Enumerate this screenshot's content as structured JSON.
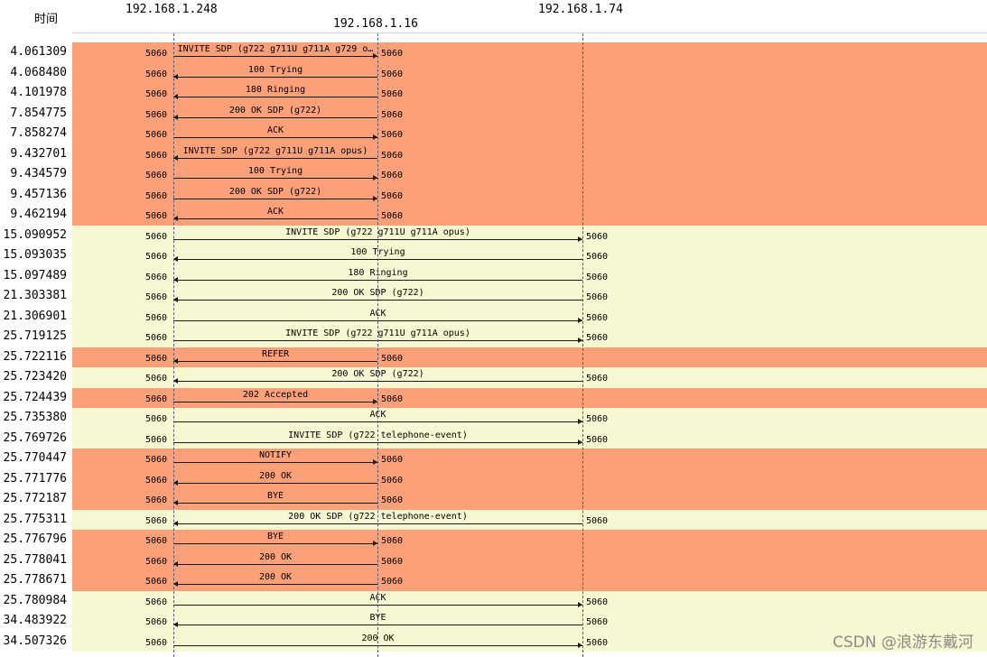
{
  "header": {
    "time_label": "时间",
    "hosts": [
      "192.168.1.248",
      "192.168.1.16",
      "192.168.1.74"
    ]
  },
  "colors": {
    "orange": "#fca07a",
    "yellow": "#f7f7d2"
  },
  "rows": [
    {
      "time": "4.061309",
      "color": "orange",
      "from": 0,
      "to": 1,
      "label": "INVITE SDP (g722 g711U g711A g729 o…",
      "p1": "5060",
      "p2": "5060"
    },
    {
      "time": "4.068480",
      "color": "orange",
      "from": 1,
      "to": 0,
      "label": "100 Trying",
      "p1": "5060",
      "p2": "5060"
    },
    {
      "time": "4.101978",
      "color": "orange",
      "from": 1,
      "to": 0,
      "label": "180 Ringing",
      "p1": "5060",
      "p2": "5060"
    },
    {
      "time": "7.854775",
      "color": "orange",
      "from": 1,
      "to": 0,
      "label": "200 OK SDP (g722)",
      "p1": "5060",
      "p2": "5060"
    },
    {
      "time": "7.858274",
      "color": "orange",
      "from": 0,
      "to": 1,
      "label": "ACK",
      "p1": "5060",
      "p2": "5060"
    },
    {
      "time": "9.432701",
      "color": "orange",
      "from": 1,
      "to": 0,
      "label": "INVITE SDP (g722 g711U g711A opus)",
      "p1": "5060",
      "p2": "5060"
    },
    {
      "time": "9.434579",
      "color": "orange",
      "from": 0,
      "to": 1,
      "label": "100 Trying",
      "p1": "5060",
      "p2": "5060"
    },
    {
      "time": "9.457136",
      "color": "orange",
      "from": 0,
      "to": 1,
      "label": "200 OK SDP (g722)",
      "p1": "5060",
      "p2": "5060"
    },
    {
      "time": "9.462194",
      "color": "orange",
      "from": 1,
      "to": 0,
      "label": "ACK",
      "p1": "5060",
      "p2": "5060"
    },
    {
      "time": "15.090952",
      "color": "yellow",
      "from": 0,
      "to": 2,
      "label": "INVITE SDP (g722 g711U g711A opus)",
      "p1": "5060",
      "p2": "5060"
    },
    {
      "time": "15.093035",
      "color": "yellow",
      "from": 2,
      "to": 0,
      "label": "100 Trying",
      "p1": "5060",
      "p2": "5060"
    },
    {
      "time": "15.097489",
      "color": "yellow",
      "from": 2,
      "to": 0,
      "label": "180 Ringing",
      "p1": "5060",
      "p2": "5060"
    },
    {
      "time": "21.303381",
      "color": "yellow",
      "from": 2,
      "to": 0,
      "label": "200 OK SDP (g722)",
      "p1": "5060",
      "p2": "5060"
    },
    {
      "time": "21.306901",
      "color": "yellow",
      "from": 0,
      "to": 2,
      "label": "ACK",
      "p1": "5060",
      "p2": "5060"
    },
    {
      "time": "25.719125",
      "color": "yellow",
      "from": 0,
      "to": 2,
      "label": "INVITE SDP (g722 g711U g711A opus)",
      "p1": "5060",
      "p2": "5060"
    },
    {
      "time": "25.722116",
      "color": "orange",
      "from": 1,
      "to": 0,
      "label": "REFER",
      "p1": "5060",
      "p2": "5060"
    },
    {
      "time": "25.723420",
      "color": "yellow",
      "from": 2,
      "to": 0,
      "label": "200 OK SDP (g722)",
      "p1": "5060",
      "p2": "5060"
    },
    {
      "time": "25.724439",
      "color": "orange",
      "from": 0,
      "to": 1,
      "label": "202 Accepted",
      "p1": "5060",
      "p2": "5060"
    },
    {
      "time": "25.735380",
      "color": "yellow",
      "from": 0,
      "to": 2,
      "label": "ACK",
      "p1": "5060",
      "p2": "5060"
    },
    {
      "time": "25.769726",
      "color": "yellow",
      "from": 0,
      "to": 2,
      "label": "INVITE SDP (g722 telephone-event)",
      "p1": "5060",
      "p2": "5060"
    },
    {
      "time": "25.770447",
      "color": "orange",
      "from": 0,
      "to": 1,
      "label": "NOTIFY",
      "p1": "5060",
      "p2": "5060"
    },
    {
      "time": "25.771776",
      "color": "orange",
      "from": 1,
      "to": 0,
      "label": "200 OK",
      "p1": "5060",
      "p2": "5060"
    },
    {
      "time": "25.772187",
      "color": "orange",
      "from": 1,
      "to": 0,
      "label": "BYE",
      "p1": "5060",
      "p2": "5060"
    },
    {
      "time": "25.775311",
      "color": "yellow",
      "from": 2,
      "to": 0,
      "label": "200 OK SDP (g722 telephone-event)",
      "p1": "5060",
      "p2": "5060"
    },
    {
      "time": "25.776796",
      "color": "orange",
      "from": 0,
      "to": 1,
      "label": "BYE",
      "p1": "5060",
      "p2": "5060"
    },
    {
      "time": "25.778041",
      "color": "orange",
      "from": 1,
      "to": 0,
      "label": "200 OK",
      "p1": "5060",
      "p2": "5060"
    },
    {
      "time": "25.778671",
      "color": "orange",
      "from": 1,
      "to": 0,
      "label": "200 OK",
      "p1": "5060",
      "p2": "5060"
    },
    {
      "time": "25.780984",
      "color": "yellow",
      "from": 0,
      "to": 2,
      "label": "ACK",
      "p1": "5060",
      "p2": "5060"
    },
    {
      "time": "34.483922",
      "color": "yellow",
      "from": 2,
      "to": 0,
      "label": "BYE",
      "p1": "5060",
      "p2": "5060"
    },
    {
      "time": "34.507326",
      "color": "yellow",
      "from": 0,
      "to": 2,
      "label": "200 OK",
      "p1": "5060",
      "p2": "5060"
    }
  ],
  "watermark": "CSDN @浪游东戴河"
}
